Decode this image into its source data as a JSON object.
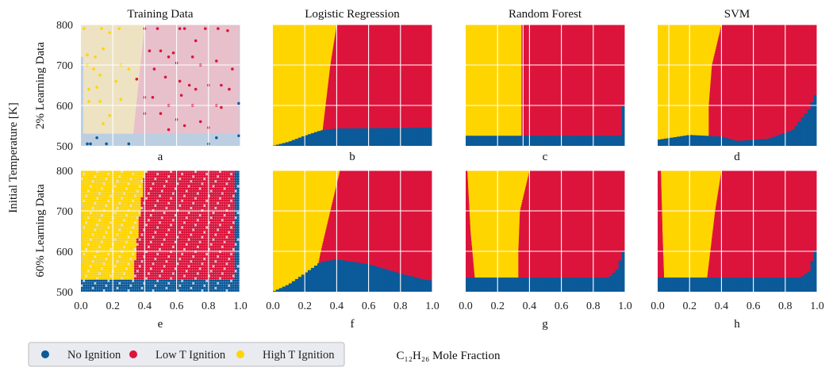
{
  "colors": {
    "no_ignition": "#0b5a99",
    "low_t": "#dc143c",
    "high_t": "#ffd500",
    "no_ignition_light": "#bccfe2",
    "low_t_light": "#e7c0cb",
    "high_t_light": "#ede2c2",
    "grid": "#ffffff",
    "legend_bg": "#e9ebf0",
    "legend_border": "#bbbbbb"
  },
  "column_titles": [
    "Training Data",
    "Logistic Regression",
    "Random Forest",
    "SVM"
  ],
  "row_labels": [
    "2% Learning Data",
    "60% Learning Data"
  ],
  "panel_letters": [
    "a",
    "b",
    "c",
    "d",
    "e",
    "f",
    "g",
    "h"
  ],
  "shared_ylabel": "Initial Temperature [K]",
  "shared_xlabel": "C₁₂H₂₆ Mole Fraction",
  "xticks": [
    "0.0",
    "0.2",
    "0.4",
    "0.6",
    "0.8",
    "1.0"
  ],
  "yticks": [
    "500",
    "600",
    "700",
    "800"
  ],
  "legend": [
    {
      "label": "No Ignition",
      "color_key": "no_ignition"
    },
    {
      "label": "Low T Ignition",
      "color_key": "low_t"
    },
    {
      "label": "High T Ignition",
      "color_key": "high_t"
    }
  ],
  "chart_data": [
    {
      "panel": "a",
      "type": "scatter",
      "title": "Training Data",
      "row": "2% Learning Data",
      "xlim": [
        0,
        1
      ],
      "ylim": [
        500,
        800
      ],
      "regions": {
        "no_ignition_below_T": 530,
        "high_low_boundary_x_at": [
          [
            500,
            0.32
          ],
          [
            800,
            0.4
          ]
        ],
        "right_edge_no_ignition_x": 0.99
      },
      "points_high_t": [
        [
          0.02,
          790
        ],
        [
          0.04,
          725
        ],
        [
          0.09,
          720
        ],
        [
          0.13,
          790
        ],
        [
          0.18,
          780
        ],
        [
          0.24,
          790
        ],
        [
          0.14,
          740
        ],
        [
          0.08,
          690
        ],
        [
          0.04,
          700
        ],
        [
          0.12,
          675
        ],
        [
          0.22,
          660
        ],
        [
          0.25,
          700
        ],
        [
          0.05,
          610
        ],
        [
          0.12,
          610
        ],
        [
          0.14,
          555
        ],
        [
          0.18,
          575
        ],
        [
          0.25,
          615
        ],
        [
          0.3,
          690
        ],
        [
          0.05,
          640
        ],
        [
          0.1,
          645
        ]
      ],
      "points_low_t": [
        [
          0.4,
          790
        ],
        [
          0.48,
          790
        ],
        [
          0.55,
          720
        ],
        [
          0.58,
          730
        ],
        [
          0.62,
          790
        ],
        [
          0.65,
          790
        ],
        [
          0.72,
          760
        ],
        [
          0.78,
          790
        ],
        [
          0.86,
          790
        ],
        [
          0.92,
          785
        ],
        [
          0.43,
          735
        ],
        [
          0.5,
          735
        ],
        [
          0.6,
          705
        ],
        [
          0.7,
          720
        ],
        [
          0.75,
          700
        ],
        [
          0.85,
          710
        ],
        [
          0.95,
          690
        ],
        [
          0.46,
          690
        ],
        [
          0.53,
          670
        ],
        [
          0.62,
          660
        ],
        [
          0.68,
          650
        ],
        [
          0.72,
          640
        ],
        [
          0.8,
          650
        ],
        [
          0.88,
          650
        ],
        [
          0.93,
          640
        ],
        [
          0.4,
          620
        ],
        [
          0.45,
          620
        ],
        [
          0.55,
          600
        ],
        [
          0.63,
          625
        ],
        [
          0.7,
          600
        ],
        [
          0.85,
          600
        ],
        [
          0.35,
          665
        ],
        [
          0.4,
          580
        ],
        [
          0.5,
          580
        ],
        [
          0.55,
          540
        ],
        [
          0.65,
          550
        ],
        [
          0.75,
          560
        ],
        [
          0.8,
          545
        ],
        [
          0.6,
          565
        ],
        [
          0.88,
          595
        ]
      ],
      "points_no_ignition": [
        [
          0.04,
          505
        ],
        [
          0.06,
          505
        ],
        [
          0.1,
          520
        ],
        [
          0.16,
          505
        ],
        [
          0.3,
          505
        ],
        [
          0.8,
          505
        ],
        [
          0.85,
          520
        ],
        [
          0.99,
          525
        ],
        [
          0.99,
          605
        ]
      ]
    },
    {
      "panel": "b",
      "type": "heatmap",
      "title": "Logistic Regression",
      "row": "2% Learning Data",
      "xlim": [
        0,
        1
      ],
      "ylim": [
        500,
        800
      ],
      "high_low_boundary_x_at": [
        [
          500,
          0.3
        ],
        [
          600,
          0.33
        ],
        [
          700,
          0.36
        ],
        [
          800,
          0.4
        ]
      ],
      "no_ignition_top_T_at": [
        [
          0.0,
          500
        ],
        [
          0.1,
          510
        ],
        [
          0.2,
          525
        ],
        [
          0.3,
          538
        ],
        [
          0.4,
          543
        ],
        [
          1.0,
          545
        ]
      ]
    },
    {
      "panel": "c",
      "type": "heatmap",
      "title": "Random Forest",
      "row": "2% Learning Data",
      "xlim": [
        0,
        1
      ],
      "ylim": [
        500,
        800
      ],
      "high_low_boundary_x_at": [
        [
          500,
          0.35
        ],
        [
          800,
          0.35
        ]
      ],
      "no_ignition_top_T_at": [
        [
          0.0,
          525
        ],
        [
          0.97,
          525
        ],
        [
          0.99,
          600
        ],
        [
          1.0,
          600
        ]
      ]
    },
    {
      "panel": "d",
      "type": "heatmap",
      "title": "SVM",
      "row": "2% Learning Data",
      "xlim": [
        0,
        1
      ],
      "ylim": [
        500,
        800
      ],
      "high_low_boundary_x_at": [
        [
          500,
          0.32
        ],
        [
          600,
          0.32
        ],
        [
          700,
          0.34
        ],
        [
          800,
          0.4
        ]
      ],
      "no_ignition_top_T_at": [
        [
          0.0,
          515
        ],
        [
          0.2,
          527
        ],
        [
          0.4,
          523
        ],
        [
          0.5,
          512
        ],
        [
          0.7,
          518
        ],
        [
          0.85,
          540
        ],
        [
          0.95,
          590
        ],
        [
          1.0,
          635
        ]
      ]
    },
    {
      "panel": "e",
      "type": "scatter",
      "title": "Training Data",
      "row": "60% Learning Data",
      "xlim": [
        0,
        1
      ],
      "ylim": [
        500,
        800
      ],
      "regions": {
        "no_ignition_below_T": 530,
        "high_low_boundary_x_at": [
          [
            500,
            0.32
          ],
          [
            800,
            0.4
          ]
        ],
        "right_edge_no_ignition_x": 0.97
      },
      "dense_grid": {
        "x_step": 0.014,
        "T_step": 6
      }
    },
    {
      "panel": "f",
      "type": "heatmap",
      "title": "",
      "row": "60% Learning Data",
      "xlim": [
        0,
        1
      ],
      "ylim": [
        500,
        800
      ],
      "high_low_boundary_x_at": [
        [
          500,
          0.25
        ],
        [
          600,
          0.3
        ],
        [
          700,
          0.36
        ],
        [
          800,
          0.42
        ]
      ],
      "no_ignition_top_T_at": [
        [
          0.0,
          500
        ],
        [
          0.1,
          518
        ],
        [
          0.2,
          545
        ],
        [
          0.3,
          573
        ],
        [
          0.4,
          580
        ],
        [
          0.6,
          568
        ],
        [
          0.8,
          545
        ],
        [
          0.95,
          530
        ],
        [
          1.0,
          528
        ]
      ]
    },
    {
      "panel": "g",
      "type": "heatmap",
      "title": "",
      "row": "60% Learning Data",
      "xlim": [
        0,
        1
      ],
      "ylim": [
        500,
        800
      ],
      "high_low_boundary_x_at": [
        [
          520,
          0.33
        ],
        [
          600,
          0.33
        ],
        [
          700,
          0.34
        ],
        [
          800,
          0.4
        ]
      ],
      "high_left_edge_x_at": [
        [
          520,
          0.06
        ],
        [
          650,
          0.03
        ],
        [
          800,
          0.01
        ]
      ],
      "no_ignition_top_T_at": [
        [
          0.0,
          535
        ],
        [
          0.9,
          535
        ],
        [
          0.95,
          555
        ],
        [
          1.0,
          610
        ]
      ]
    },
    {
      "panel": "h",
      "type": "heatmap",
      "title": "",
      "row": "60% Learning Data",
      "xlim": [
        0,
        1
      ],
      "ylim": [
        500,
        800
      ],
      "high_low_boundary_x_at": [
        [
          535,
          0.31
        ],
        [
          600,
          0.33
        ],
        [
          700,
          0.36
        ],
        [
          800,
          0.4
        ]
      ],
      "high_left_edge_x_at": [
        [
          535,
          0.04
        ],
        [
          650,
          0.03
        ],
        [
          800,
          0.02
        ]
      ],
      "no_ignition_top_T_at": [
        [
          0.0,
          535
        ],
        [
          0.9,
          535
        ],
        [
          0.95,
          550
        ],
        [
          1.0,
          615
        ]
      ]
    }
  ]
}
